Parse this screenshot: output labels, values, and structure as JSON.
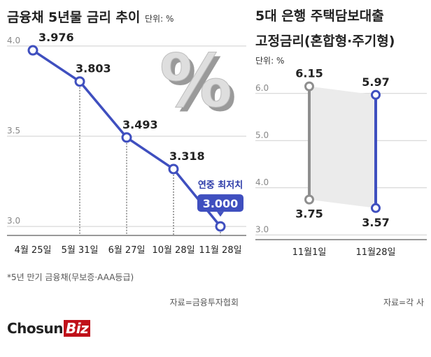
{
  "left_title": "금융채 5년물 금리 추이",
  "left_unit": "단위: %",
  "right_title_line1": "5대 은행 주택담보대출",
  "right_title_line2": "고정금리(혼합형·주기형)",
  "right_unit": "단위: %",
  "footnote": "*5년 만기 금융채(무보증·AAA등급)",
  "source_left": "자료=금융투자협회",
  "source_right": "자료=각 사",
  "logo": {
    "part1": "Chosun",
    "part2": "Biz"
  },
  "percent_decoration": "%",
  "colors": {
    "accent": "#3f4fbf",
    "gray_series": "#8e8e8e",
    "label_blue": "#2b3aa8",
    "brand_red": "#c0111a"
  },
  "chart_data": [
    {
      "type": "line",
      "categories": [
        "4월 25일",
        "5월 31일",
        "6월 27일",
        "10월 28일",
        "11월 28일"
      ],
      "values": [
        3.976,
        3.803,
        3.493,
        3.318,
        3.0
      ],
      "value_labels": [
        "3.976",
        "3.803",
        "3.493",
        "3.318",
        "3.000"
      ],
      "yticks": [
        "4.0",
        "3.5",
        "3.0"
      ],
      "ytick_values": [
        4.0,
        3.5,
        3.0
      ],
      "ylim": [
        2.95,
        4.1
      ],
      "annotation": "연중 최저치",
      "highlight_index": 4
    },
    {
      "type": "range",
      "categories": [
        "11월1일",
        "11월28일"
      ],
      "series": [
        {
          "values": [
            6.15,
            5.97
          ],
          "labels": [
            "6.15",
            "5.97"
          ]
        },
        {
          "values": [
            3.75,
            3.57
          ],
          "labels": [
            "3.75",
            "3.57"
          ]
        }
      ],
      "yticks": [
        "6.0",
        "5.0",
        "4.0",
        "3.0"
      ],
      "ytick_values": [
        6.0,
        5.0,
        4.0,
        3.0
      ],
      "ylim": [
        2.9,
        6.5
      ]
    }
  ]
}
